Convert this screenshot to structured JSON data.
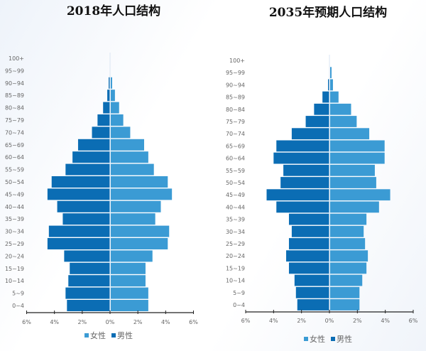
{
  "colors": {
    "female": "#3b9bd4",
    "male": "#0b6db4",
    "axis": "#222222",
    "center_line": "#cccccc"
  },
  "chart_data": [
    {
      "type": "bar",
      "orientation": "horizontal",
      "layout": "population-pyramid",
      "title": "2018年人口结构",
      "categories": [
        "0~4",
        "5~9",
        "10~14",
        "15~19",
        "20~24",
        "25~29",
        "30~34",
        "35~39",
        "40~44",
        "45~49",
        "50~54",
        "55~59",
        "60~64",
        "65~69",
        "70~74",
        "75~79",
        "80~84",
        "85~89",
        "90~94",
        "95~99",
        "100+"
      ],
      "series": [
        {
          "name": "男性",
          "side": "left",
          "values": [
            3.1,
            3.2,
            3.0,
            2.9,
            3.3,
            4.5,
            4.4,
            3.4,
            3.8,
            4.5,
            4.2,
            3.2,
            2.7,
            2.3,
            1.3,
            0.9,
            0.5,
            0.2,
            0.1,
            0.0,
            0.0
          ]
        },
        {
          "name": "女性",
          "side": "right",
          "values": [
            2.7,
            2.7,
            2.5,
            2.5,
            3.0,
            4.1,
            4.2,
            3.2,
            3.6,
            4.4,
            4.1,
            3.1,
            2.7,
            2.4,
            1.4,
            0.9,
            0.6,
            0.3,
            0.1,
            0.0,
            0.0
          ]
        }
      ],
      "xlim": [
        -6,
        6
      ],
      "xticks": [
        "6%",
        "4%",
        "2%",
        "0%",
        "2%",
        "4%",
        "6%"
      ],
      "legend": [
        "女性",
        "男性"
      ],
      "legend_position": "bottom",
      "grid": false
    },
    {
      "type": "bar",
      "orientation": "horizontal",
      "layout": "population-pyramid",
      "title": "2035年预期人口结构",
      "categories": [
        "0~4",
        "5~9",
        "10~14",
        "15~19",
        "20~24",
        "25~29",
        "30~34",
        "35~39",
        "40~44",
        "45~49",
        "50~54",
        "55~59",
        "60~64",
        "65~69",
        "70~74",
        "75~79",
        "80~84",
        "85~89",
        "90~94",
        "95~99",
        "100+"
      ],
      "series": [
        {
          "name": "男性",
          "side": "left",
          "values": [
            2.3,
            2.4,
            2.5,
            2.9,
            3.1,
            2.9,
            2.7,
            2.9,
            3.8,
            4.5,
            3.5,
            3.3,
            4.0,
            3.8,
            2.7,
            1.7,
            1.1,
            0.5,
            0.1,
            0.0,
            0.0
          ]
        },
        {
          "name": "女性",
          "side": "right",
          "values": [
            2.1,
            2.1,
            2.3,
            2.6,
            2.7,
            2.5,
            2.4,
            2.6,
            3.5,
            4.3,
            3.3,
            3.2,
            3.9,
            3.9,
            2.8,
            1.9,
            1.5,
            0.6,
            0.2,
            0.1,
            0.0
          ]
        }
      ],
      "xlim": [
        -6,
        6
      ],
      "xticks": [
        "6%",
        "4%",
        "2%",
        "0%",
        "2%",
        "4%",
        "6%"
      ],
      "legend": [
        "女性",
        "男性"
      ],
      "legend_position": "bottom",
      "grid": false
    }
  ]
}
